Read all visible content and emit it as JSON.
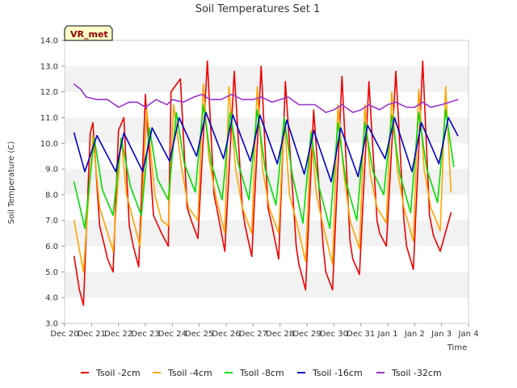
{
  "chart_data": {
    "type": "line",
    "title": "Soil Temperatures Set 1",
    "xlabel": "Time",
    "ylabel": "Soil Temperature (C)",
    "ylim": [
      3.0,
      14.0
    ],
    "yticks": [
      3.0,
      4.0,
      5.0,
      6.0,
      7.0,
      8.0,
      9.0,
      10.0,
      11.0,
      12.0,
      13.0,
      14.0
    ],
    "ytick_labels": [
      "3.0",
      "4.0",
      "5.0",
      "6.0",
      "7.0",
      "8.0",
      "9.0",
      "10.0",
      "11.0",
      "12.0",
      "13.0",
      "14.0"
    ],
    "xlim": [
      0,
      15
    ],
    "xticks": [
      0,
      1,
      2,
      3,
      4,
      5,
      6,
      7,
      8,
      9,
      10,
      11,
      12,
      13,
      14,
      15
    ],
    "xtick_labels": [
      "Dec 20",
      "Dec 21",
      "Dec 22",
      "Dec 23",
      "Dec 24",
      "Dec 25",
      "Dec 26",
      "Dec 27",
      "Dec 28",
      "Dec 29",
      "Dec 30",
      "Dec 31",
      "Jan 1",
      "Jan 2",
      "Jan 3",
      "Jan 4"
    ],
    "grid": "horizontal bands",
    "legend_position": "bottom",
    "badge": "VR_met",
    "series": [
      {
        "name": "Tsoil -2cm",
        "color": "#ee0000",
        "x": [
          0.35,
          0.55,
          0.7,
          0.95,
          1.05,
          1.3,
          1.6,
          1.8,
          2.0,
          2.2,
          2.4,
          2.55,
          2.75,
          3.0,
          3.3,
          3.6,
          3.85,
          3.95,
          4.3,
          4.55,
          4.7,
          4.95,
          5.3,
          5.55,
          5.7,
          5.95,
          6.3,
          6.6,
          6.7,
          6.95,
          7.3,
          7.55,
          7.7,
          7.95,
          8.2,
          8.6,
          8.7,
          8.95,
          9.25,
          9.6,
          9.7,
          9.95,
          10.3,
          10.6,
          10.7,
          10.95,
          11.3,
          11.6,
          11.7,
          11.95,
          12.3,
          12.6,
          12.7,
          12.95,
          13.3,
          13.55,
          13.7,
          13.95,
          14.35
        ],
        "y": [
          5.6,
          4.3,
          3.7,
          10.4,
          10.8,
          6.8,
          5.5,
          5.0,
          10.5,
          11.0,
          6.8,
          6.0,
          5.2,
          11.9,
          7.2,
          6.5,
          6.0,
          12.0,
          12.5,
          7.5,
          7.0,
          6.3,
          13.2,
          8.0,
          7.2,
          5.8,
          12.8,
          7.5,
          6.8,
          5.6,
          13.0,
          7.5,
          6.8,
          5.5,
          12.4,
          6.0,
          5.3,
          4.3,
          11.3,
          6.0,
          5.0,
          4.3,
          12.6,
          6.2,
          5.5,
          4.9,
          12.4,
          7.0,
          6.5,
          6.0,
          12.8,
          7.0,
          6.0,
          5.1,
          13.2,
          7.2,
          6.4,
          5.8,
          7.3
        ]
      },
      {
        "name": "Tsoil -4cm",
        "color": "#ffa500",
        "x": [
          0.35,
          0.7,
          1.05,
          1.3,
          1.6,
          1.8,
          2.1,
          2.3,
          2.55,
          2.8,
          3.05,
          3.35,
          3.6,
          3.85,
          4.05,
          4.35,
          4.6,
          4.95,
          5.15,
          5.35,
          5.6,
          5.95,
          6.1,
          6.35,
          6.6,
          6.95,
          7.15,
          7.35,
          7.6,
          7.95,
          8.15,
          8.35,
          8.6,
          8.95,
          9.15,
          9.35,
          9.6,
          9.95,
          10.15,
          10.35,
          10.6,
          10.95,
          11.15,
          11.35,
          11.6,
          11.95,
          12.15,
          12.35,
          12.6,
          12.95,
          13.15,
          13.35,
          13.6,
          13.95,
          14.15,
          14.35
        ],
        "y": [
          7.0,
          5.0,
          10.3,
          7.5,
          6.5,
          5.8,
          10.2,
          8.0,
          7.0,
          6.0,
          11.3,
          8.0,
          7.0,
          6.8,
          11.5,
          9.0,
          7.5,
          7.0,
          12.3,
          9.5,
          8.0,
          6.5,
          12.2,
          9.0,
          7.5,
          6.5,
          12.2,
          9.0,
          7.5,
          6.5,
          11.0,
          8.0,
          7.0,
          5.4,
          10.5,
          8.0,
          6.8,
          5.3,
          11.5,
          9.0,
          7.0,
          5.9,
          11.5,
          8.8,
          7.5,
          6.9,
          12.0,
          9.0,
          7.5,
          6.2,
          12.1,
          9.0,
          7.5,
          6.6,
          12.2,
          8.1
        ]
      },
      {
        "name": "Tsoil -8cm",
        "color": "#00dd00",
        "x": [
          0.35,
          0.75,
          1.1,
          1.4,
          1.8,
          2.1,
          2.45,
          2.85,
          3.15,
          3.45,
          3.85,
          4.15,
          4.45,
          4.85,
          5.15,
          5.45,
          5.85,
          6.15,
          6.45,
          6.85,
          7.15,
          7.45,
          7.85,
          8.15,
          8.45,
          8.85,
          9.15,
          9.45,
          9.85,
          10.15,
          10.45,
          10.85,
          11.15,
          11.45,
          11.85,
          12.15,
          12.45,
          12.85,
          13.15,
          13.45,
          13.85,
          14.15,
          14.45
        ],
        "y": [
          8.5,
          6.7,
          10.2,
          8.2,
          7.2,
          10.2,
          8.3,
          7.2,
          10.6,
          8.6,
          7.8,
          11.2,
          9.2,
          8.1,
          11.5,
          9.2,
          7.8,
          11.2,
          9.2,
          7.8,
          11.3,
          9.0,
          7.6,
          11.0,
          8.8,
          6.9,
          10.4,
          8.3,
          6.7,
          10.8,
          8.5,
          7.0,
          10.8,
          8.9,
          8.0,
          11.1,
          8.8,
          7.3,
          11.2,
          9.0,
          7.7,
          11.3,
          9.1
        ]
      },
      {
        "name": "Tsoil -16cm",
        "color": "#0000cc",
        "x": [
          0.35,
          0.75,
          1.2,
          1.9,
          2.2,
          2.9,
          3.25,
          3.9,
          4.25,
          4.9,
          5.25,
          5.9,
          6.25,
          6.9,
          7.25,
          7.9,
          8.25,
          8.9,
          9.25,
          9.9,
          10.25,
          10.9,
          11.25,
          11.9,
          12.25,
          12.9,
          13.25,
          13.9,
          14.25,
          14.6
        ],
        "y": [
          10.4,
          8.9,
          10.3,
          8.9,
          10.4,
          8.9,
          10.6,
          9.3,
          11.0,
          9.5,
          11.2,
          9.4,
          11.1,
          9.3,
          11.1,
          9.2,
          10.9,
          8.8,
          10.5,
          8.5,
          10.6,
          8.7,
          10.7,
          9.4,
          11.0,
          8.9,
          10.8,
          9.2,
          11.0,
          10.3
        ]
      },
      {
        "name": "Tsoil -32cm",
        "color": "#9933cc",
        "x": [
          0.35,
          0.6,
          0.8,
          1.2,
          1.6,
          2.0,
          2.4,
          2.7,
          3.0,
          3.4,
          3.8,
          4.0,
          4.4,
          4.8,
          5.1,
          5.4,
          5.8,
          6.2,
          6.6,
          7.0,
          7.3,
          7.7,
          8.0,
          8.3,
          8.7,
          9.0,
          9.3,
          9.7,
          10.0,
          10.3,
          10.7,
          11.0,
          11.3,
          11.7,
          12.0,
          12.3,
          12.7,
          13.0,
          13.3,
          13.6,
          14.0,
          14.3,
          14.6
        ],
        "y": [
          12.3,
          12.1,
          11.8,
          11.7,
          11.7,
          11.4,
          11.6,
          11.6,
          11.4,
          11.7,
          11.5,
          11.7,
          11.6,
          11.8,
          11.9,
          11.7,
          11.7,
          11.9,
          11.7,
          11.7,
          11.8,
          11.6,
          11.7,
          11.8,
          11.5,
          11.5,
          11.5,
          11.2,
          11.3,
          11.5,
          11.2,
          11.3,
          11.5,
          11.3,
          11.5,
          11.6,
          11.4,
          11.4,
          11.6,
          11.4,
          11.5,
          11.6,
          11.7
        ]
      }
    ]
  }
}
